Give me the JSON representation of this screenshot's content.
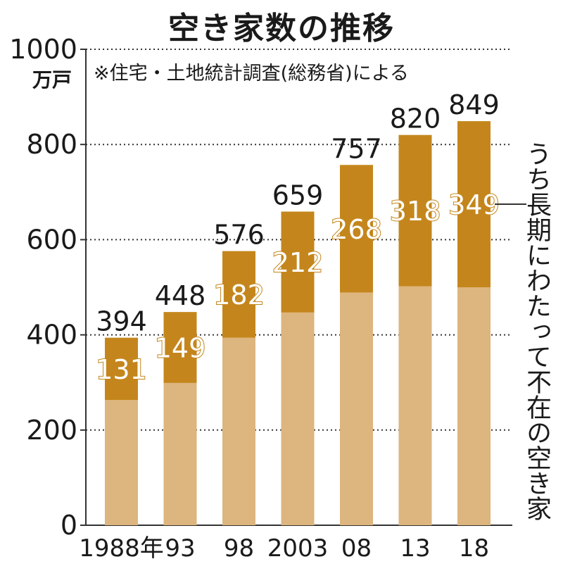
{
  "title": "空き家数の推移",
  "note": "※住宅・土地統計調査(総務省)による",
  "unit": "万戸",
  "side_label": "うち長期にわたって不在の空き家",
  "colors": {
    "total": "#c4861c",
    "long_term": "#ddb57e",
    "label_text": "#ffffff",
    "label_stroke": "#c4861c"
  },
  "chart_data": {
    "type": "bar",
    "categories": [
      "1988年",
      "93",
      "98",
      "2003",
      "08",
      "13",
      "18"
    ],
    "series": [
      {
        "values": [
          394,
          448,
          576,
          659,
          757,
          820,
          849
        ]
      },
      {
        "values": [
          131,
          149,
          182,
          212,
          268,
          318,
          349
        ]
      }
    ],
    "ylim": [
      0,
      1000
    ],
    "yticks": [
      "0",
      "200",
      "400",
      "600",
      "800",
      "1000"
    ],
    "grid": true
  }
}
